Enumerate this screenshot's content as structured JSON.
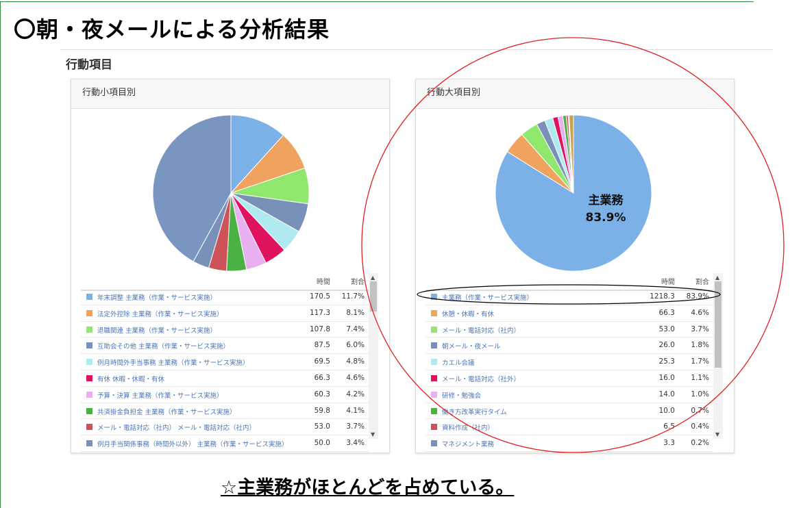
{
  "slide": {
    "title": "〇朝・夜メールによる分析結果",
    "section": "行動項目",
    "conclusion": "☆主業務がほとんどを占めている。"
  },
  "chart_data": [
    {
      "type": "pie",
      "title": "行動小項目別",
      "col_time": "時間",
      "col_ratio": "割合",
      "pie_rest_color": "#7996c1",
      "rows": [
        {
          "label": "年末調整 主業務（作業・サービス実施）",
          "time": "170.5",
          "ratio": "11.7%",
          "value": 11.7,
          "color": "#7cb1e8"
        },
        {
          "label": "法定外控除 主業務（作業・サービス実施）",
          "time": "117.3",
          "ratio": "8.1%",
          "value": 8.1,
          "color": "#f0a35e"
        },
        {
          "label": "退職関連 主業務（作業・サービス実施）",
          "time": "107.8",
          "ratio": "7.4%",
          "value": 7.4,
          "color": "#90e76e"
        },
        {
          "label": "互助会その他 主業務（作業・サービス実施）",
          "time": "87.5",
          "ratio": "6.0%",
          "value": 6.0,
          "color": "#7990b8"
        },
        {
          "label": "例月時間外手当事務 主業務（作業・サービス実施）",
          "time": "69.5",
          "ratio": "4.8%",
          "value": 4.8,
          "color": "#aeeaf0"
        },
        {
          "label": "有休 休暇・休暇・有休",
          "time": "66.3",
          "ratio": "4.6%",
          "value": 4.6,
          "color": "#e0135f"
        },
        {
          "label": "予算・決算 主業務（作業・サービス実施）",
          "time": "60.3",
          "ratio": "4.2%",
          "value": 4.2,
          "color": "#e9b0f0"
        },
        {
          "label": "共済掛金負担金 主業務（作業・サービス実施）",
          "time": "59.8",
          "ratio": "4.1%",
          "value": 4.1,
          "color": "#4bb143"
        },
        {
          "label": "メール・電話対応（社内） メール・電話対応（社内）",
          "time": "53.0",
          "ratio": "3.7%",
          "value": 3.7,
          "color": "#cd5358"
        },
        {
          "label": "例月手当関係事務（時間外以外） 主業務（作業・サービス実施）",
          "time": "50.0",
          "ratio": "3.4%",
          "value": 3.4,
          "color": "#7990b8"
        }
      ]
    },
    {
      "type": "pie",
      "title": "行動大項目別",
      "col_time": "時間",
      "col_ratio": "割合",
      "pie_label": "主業務",
      "pie_value_label": "83.9%",
      "pie_rest_color": "#c9a24a",
      "rows": [
        {
          "label": "主業務（作業・サービス実施）",
          "time": "1218.3",
          "ratio": "83.9%",
          "value": 83.9,
          "color": "#7cb1e8"
        },
        {
          "label": "休憩・休暇・有休",
          "time": "66.3",
          "ratio": "4.6%",
          "value": 4.6,
          "color": "#f0a35e"
        },
        {
          "label": "メール・電話対応（社内）",
          "time": "53.0",
          "ratio": "3.7%",
          "value": 3.7,
          "color": "#90e76e"
        },
        {
          "label": "朝メール・夜メール",
          "time": "26.0",
          "ratio": "1.8%",
          "value": 1.8,
          "color": "#7990b8"
        },
        {
          "label": "カエル会議",
          "time": "25.3",
          "ratio": "1.7%",
          "value": 1.7,
          "color": "#aeeaf0"
        },
        {
          "label": "メール・電話対応（社外）",
          "time": "16.0",
          "ratio": "1.1%",
          "value": 1.1,
          "color": "#e0135f"
        },
        {
          "label": "研修・勉強会",
          "time": "14.0",
          "ratio": "1.0%",
          "value": 1.0,
          "color": "#e9b0f0"
        },
        {
          "label": "働き方改革実行タイム",
          "time": "10.0",
          "ratio": "0.7%",
          "value": 0.7,
          "color": "#4bb143"
        },
        {
          "label": "資料作成（社内）",
          "time": "6.5",
          "ratio": "0.4%",
          "value": 0.4,
          "color": "#cd5358"
        },
        {
          "label": "マネジメント業務",
          "time": "3.3",
          "ratio": "0.2%",
          "value": 0.2,
          "color": "#7990b8"
        }
      ]
    }
  ]
}
